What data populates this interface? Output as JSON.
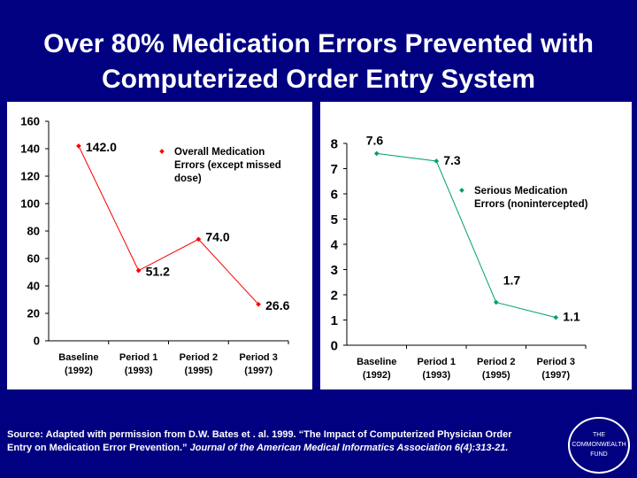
{
  "title": {
    "line1": "Over 80% Medication Errors Prevented with",
    "line2": "Computerized Order Entry System"
  },
  "colors": {
    "background": "#000080",
    "panel": "#ffffff",
    "left_series": "#ff0000",
    "right_series": "#00a070",
    "text": "#000000"
  },
  "chart_data": [
    {
      "type": "line",
      "categories": [
        "Baseline",
        "Period 1",
        "Period 2",
        "Period 3"
      ],
      "category_years": [
        "(1992)",
        "(1993)",
        "(1995)",
        "(1997)"
      ],
      "series": [
        {
          "name": "Overall Medication Errors (except missed dose)",
          "legend_lines": [
            "Overall Medication",
            "Errors (except missed",
            "dose)"
          ],
          "values": [
            142.0,
            51.2,
            74.0,
            26.6
          ],
          "labels": [
            "142.0",
            "51.2",
            "74.0",
            "26.6"
          ]
        }
      ],
      "ylim": [
        0,
        160
      ],
      "yticks": [
        "0",
        "20",
        "40",
        "60",
        "80",
        "100",
        "120",
        "140",
        "160"
      ],
      "legend_position": "top-right"
    },
    {
      "type": "line",
      "categories": [
        "Baseline",
        "Period 1",
        "Period 2",
        "Period 3"
      ],
      "category_years": [
        "(1992)",
        "(1993)",
        "(1995)",
        "(1997)"
      ],
      "series": [
        {
          "name": "Serious Medication Errors (nonintercepted)",
          "legend_lines": [
            "Serious Medication",
            "Errors (nonintercepted)"
          ],
          "values": [
            7.6,
            7.3,
            1.7,
            1.1
          ],
          "labels": [
            "7.6",
            "7.3",
            "1.7",
            "1.1"
          ]
        }
      ],
      "ylim": [
        0,
        8
      ],
      "yticks": [
        "0",
        "1",
        "2",
        "3",
        "4",
        "5",
        "6",
        "7",
        "8"
      ],
      "legend_position": "top-right"
    }
  ],
  "source": {
    "prefix": "Source: Adapted with permission from D.W. Bates et . al. 1999.  “The Impact of Computerized Physician Order Entry on Medication Error Prevention.”",
    "journal": "Journal of the American Medical Informatics Association 6(4):313-21."
  },
  "logo": {
    "line1": "THE",
    "line2": "COMMONWEALTH",
    "line3": "FUND"
  }
}
